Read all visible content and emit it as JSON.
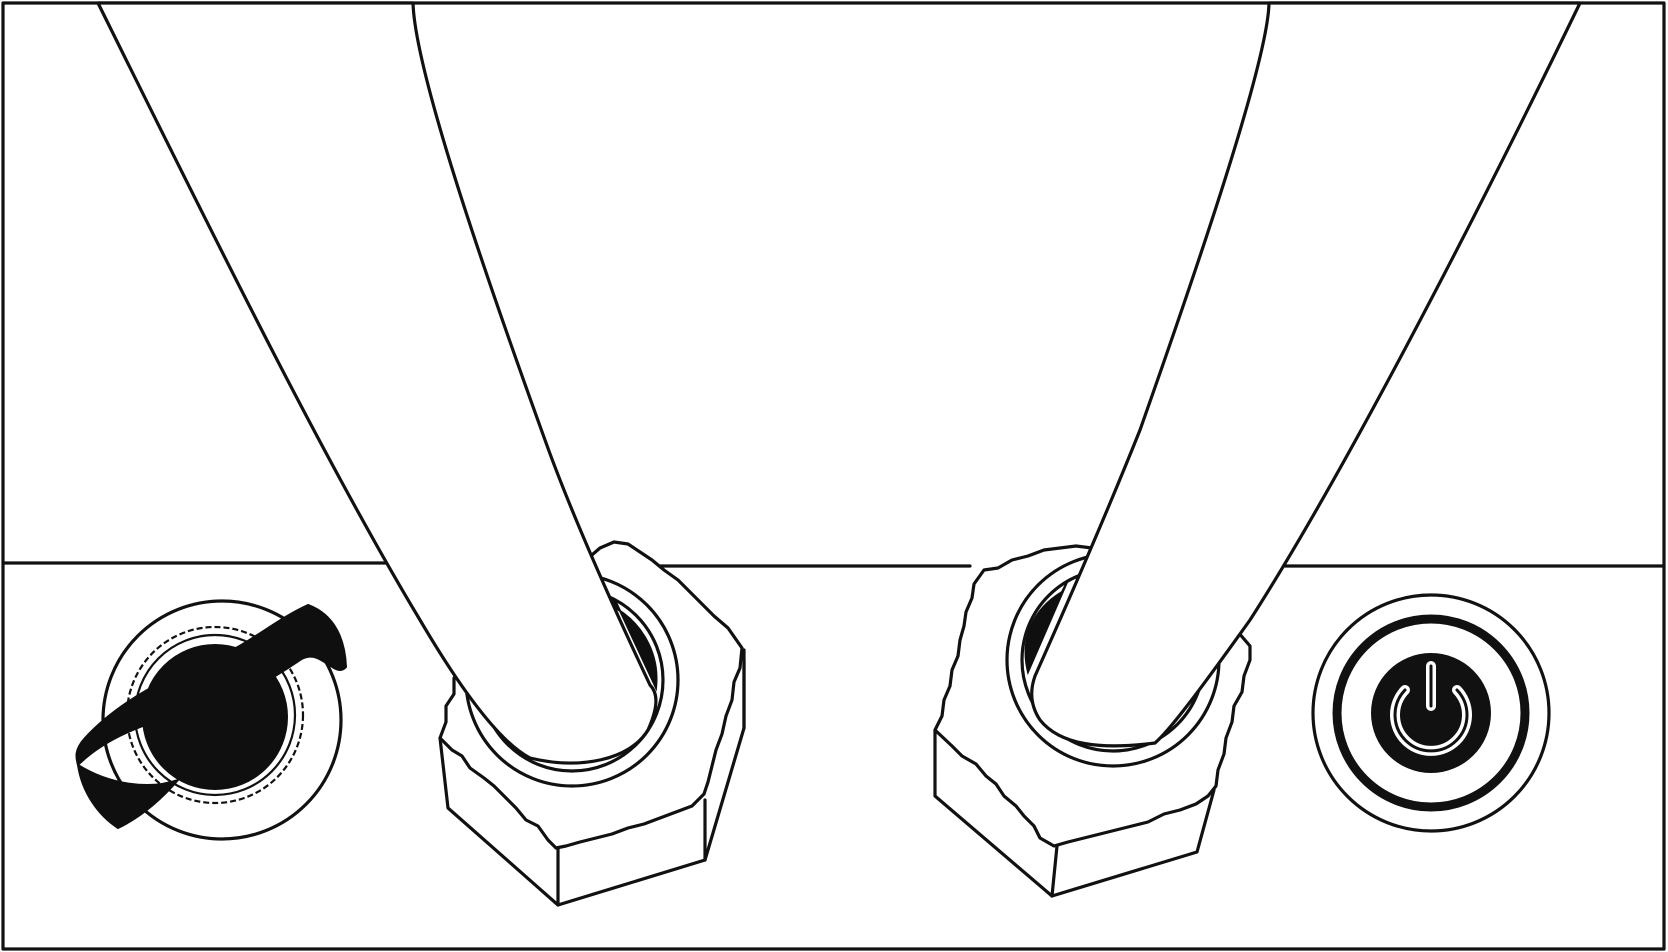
{
  "colors": {
    "ink": "#111111",
    "paper": "#ffffff",
    "knob": "#0f0f0f"
  },
  "controls": {
    "left_knob": {
      "icon": "wing-knob-icon"
    },
    "left_hose_fitting": {
      "icon": "hex-nut-icon"
    },
    "right_hose_fitting": {
      "icon": "hex-nut-icon"
    },
    "power_button": {
      "icon": "power-icon"
    }
  }
}
